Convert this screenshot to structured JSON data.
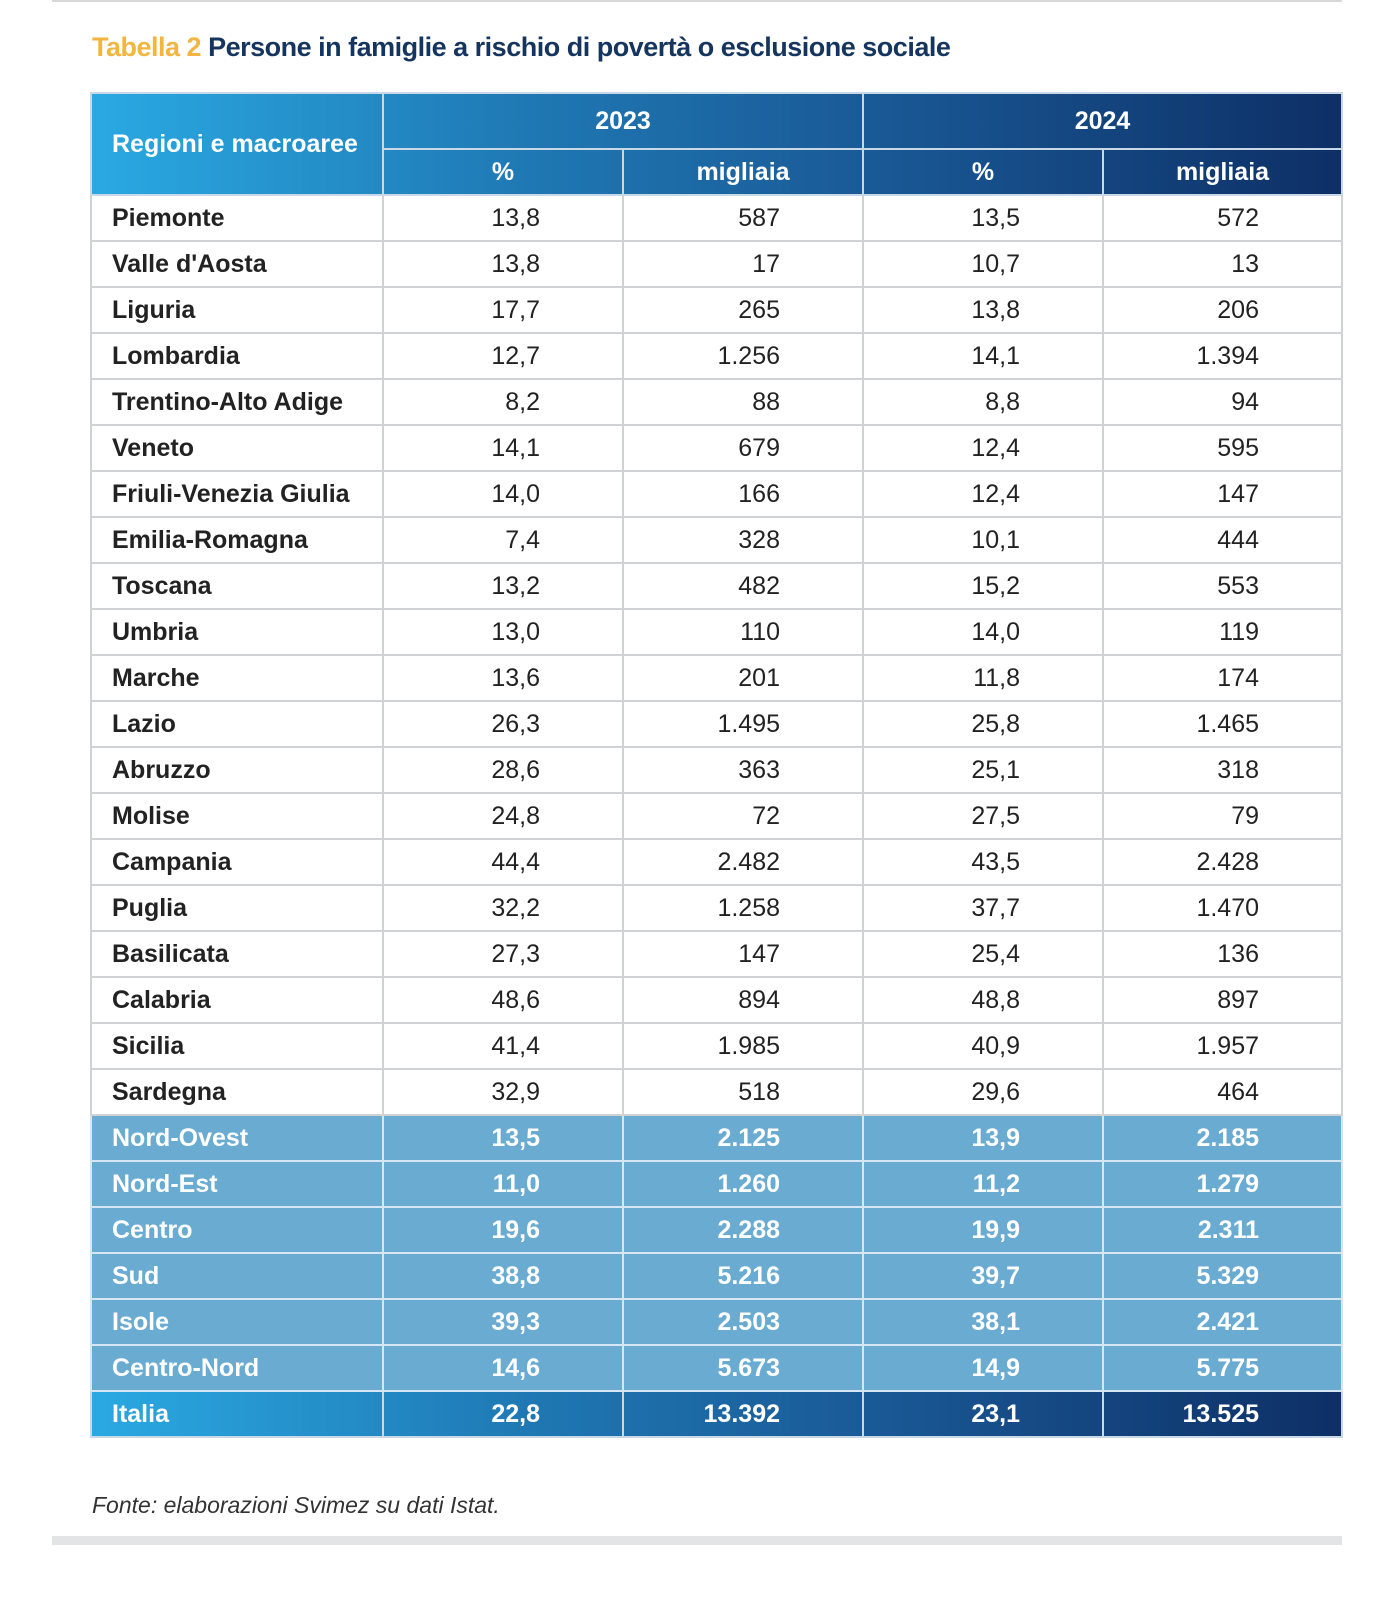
{
  "title": {
    "label": "Tabella 2",
    "text": "Persone in famiglie a rischio di povertà o esclusione sociale"
  },
  "colors": {
    "accent": "#f2b540",
    "title": "#15355f",
    "header_light": "#2aa9e2",
    "header_dark": "#0e2f66",
    "macro_row": "#6aabd2"
  },
  "table": {
    "headers": {
      "region": "Regioni e macroaree",
      "years": [
        "2023",
        "2024"
      ],
      "sub": [
        "%",
        "migliaia",
        "%",
        "migliaia"
      ]
    },
    "rows": [
      [
        "Piemonte",
        "13,8",
        "587",
        "13,5",
        "572"
      ],
      [
        "Valle d'Aosta",
        "13,8",
        "17",
        "10,7",
        "13"
      ],
      [
        "Liguria",
        "17,7",
        "265",
        "13,8",
        "206"
      ],
      [
        "Lombardia",
        "12,7",
        "1.256",
        "14,1",
        "1.394"
      ],
      [
        "Trentino-Alto Adige",
        "8,2",
        "88",
        "8,8",
        "94"
      ],
      [
        "Veneto",
        "14,1",
        "679",
        "12,4",
        "595"
      ],
      [
        "Friuli-Venezia Giulia",
        "14,0",
        "166",
        "12,4",
        "147"
      ],
      [
        "Emilia-Romagna",
        "7,4",
        "328",
        "10,1",
        "444"
      ],
      [
        "Toscana",
        "13,2",
        "482",
        "15,2",
        "553"
      ],
      [
        "Umbria",
        "13,0",
        "110",
        "14,0",
        "119"
      ],
      [
        "Marche",
        "13,6",
        "201",
        "11,8",
        "174"
      ],
      [
        "Lazio",
        "26,3",
        "1.495",
        "25,8",
        "1.465"
      ],
      [
        "Abruzzo",
        "28,6",
        "363",
        "25,1",
        "318"
      ],
      [
        "Molise",
        "24,8",
        "72",
        "27,5",
        "79"
      ],
      [
        "Campania",
        "44,4",
        "2.482",
        "43,5",
        "2.428"
      ],
      [
        "Puglia",
        "32,2",
        "1.258",
        "37,7",
        "1.470"
      ],
      [
        "Basilicata",
        "27,3",
        "147",
        "25,4",
        "136"
      ],
      [
        "Calabria",
        "48,6",
        "894",
        "48,8",
        "897"
      ],
      [
        "Sicilia",
        "41,4",
        "1.985",
        "40,9",
        "1.957"
      ],
      [
        "Sardegna",
        "32,9",
        "518",
        "29,6",
        "464"
      ]
    ],
    "macro_rows": [
      [
        "Nord-Ovest",
        "13,5",
        "2.125",
        "13,9",
        "2.185"
      ],
      [
        "Nord-Est",
        "11,0",
        "1.260",
        "11,2",
        "1.279"
      ],
      [
        "Centro",
        "19,6",
        "2.288",
        "19,9",
        "2.311"
      ],
      [
        "Sud",
        "38,8",
        "5.216",
        "39,7",
        "5.329"
      ],
      [
        "Isole",
        "39,3",
        "2.503",
        "38,1",
        "2.421"
      ],
      [
        "Centro-Nord",
        "14,6",
        "5.673",
        "14,9",
        "5.775"
      ]
    ],
    "total_row": [
      "Italia",
      "22,8",
      "13.392",
      "23,1",
      "13.525"
    ]
  },
  "source": "Fonte: elaborazioni Svimez su dati Istat."
}
